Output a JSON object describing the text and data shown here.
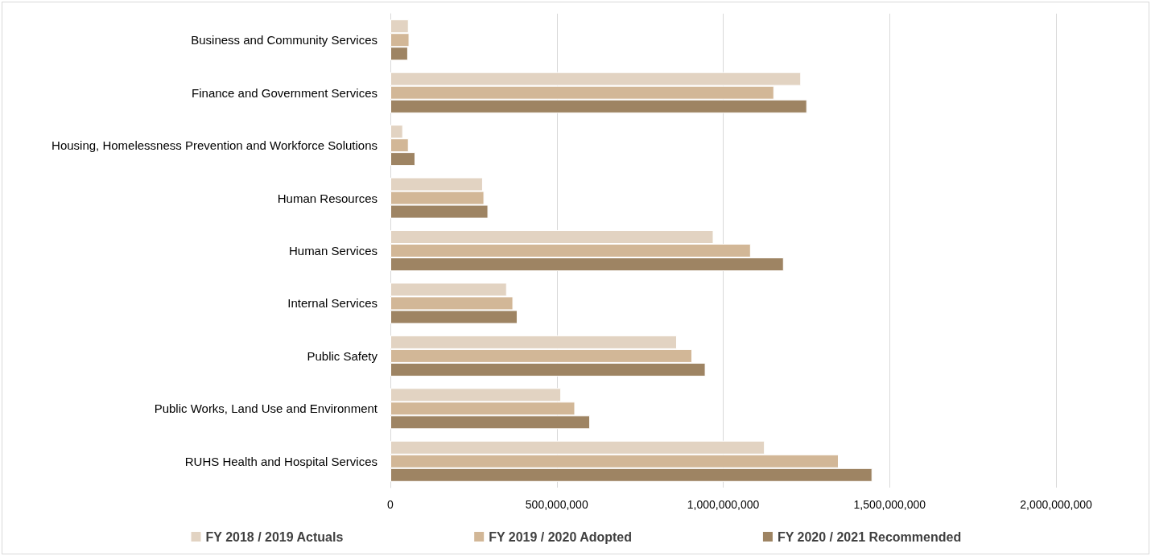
{
  "chart_data": {
    "type": "bar",
    "orientation": "horizontal",
    "categories": [
      "Business and Community Services",
      "Finance and Government Services",
      "Housing, Homelessness Prevention and Workforce Solutions",
      "Human Resources",
      "Human Services",
      "Internal Services",
      "Public Safety",
      "Public Works, Land Use and Environment",
      "RUHS Health and Hospital Services"
    ],
    "series": [
      {
        "name": "FY 2018 / 2019 Actuals",
        "color": "#e2d3c2",
        "values": [
          55000000,
          1234000000,
          38000000,
          278000000,
          971000000,
          350000000,
          861000000,
          513000000,
          1125000000
        ]
      },
      {
        "name": "FY 2019 / 2020 Adopted",
        "color": "#d2b797",
        "values": [
          57000000,
          1153000000,
          55000000,
          282000000,
          1083000000,
          369000000,
          907000000,
          555000000,
          1347000000
        ]
      },
      {
        "name": "FY 2020 / 2021 Recommended",
        "color": "#9e8463",
        "values": [
          53000000,
          1252000000,
          75000000,
          294000000,
          1182000000,
          382000000,
          947000000,
          600000000,
          1448000000
        ]
      }
    ],
    "xlim": [
      0,
      2000000000
    ],
    "xticks": [
      0,
      {
        "value": 500000000,
        "label": "500,000,000"
      },
      {
        "value": 1000000000,
        "label": "1,000,000,000"
      },
      {
        "value": 1500000000,
        "label": "1,500,000,000"
      },
      {
        "value": 2000000000,
        "label": "2,000,000,000"
      }
    ],
    "grid": "x",
    "legend": "bottom"
  }
}
